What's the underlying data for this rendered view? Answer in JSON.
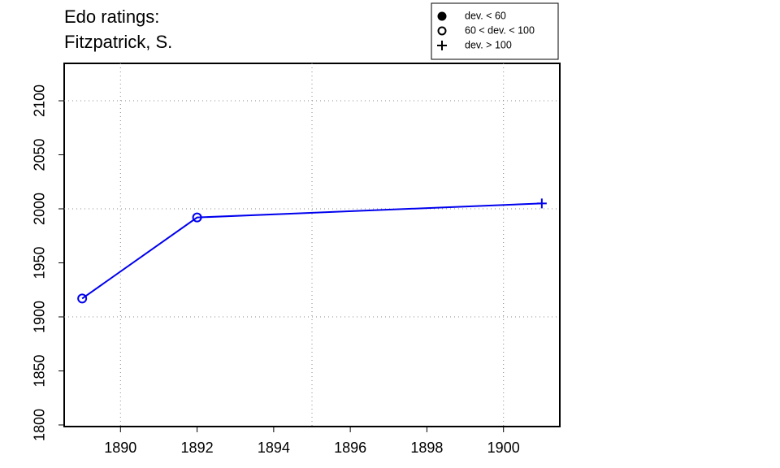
{
  "chart_data": {
    "type": "line",
    "title": [
      "Edo ratings:",
      "Fitzpatrick, S."
    ],
    "x": [
      1889,
      1892,
      1901
    ],
    "series": [
      {
        "color": "#0000ee",
        "values": [
          1917,
          1992,
          2005
        ],
        "markers": [
          "circle-open",
          "circle-open",
          "plus"
        ]
      }
    ],
    "xlim": [
      1888.53,
      1901.47
    ],
    "ylim": [
      1798.5,
      2134.6
    ],
    "xticks": [
      1890,
      1892,
      1894,
      1896,
      1898,
      1900
    ],
    "yticks": [
      1800,
      1850,
      1900,
      1950,
      2000,
      2050,
      2100
    ],
    "xgrid": [
      1890,
      1895,
      1900
    ],
    "ygrid": [
      1900,
      2000,
      2100
    ],
    "legend": {
      "position": "top-right",
      "entries": [
        {
          "label": "dev. < 60",
          "marker": "circle-filled"
        },
        {
          "label": "60 < dev. < 100",
          "marker": "circle-open"
        },
        {
          "label": "dev. > 100",
          "marker": "plus"
        }
      ]
    }
  }
}
